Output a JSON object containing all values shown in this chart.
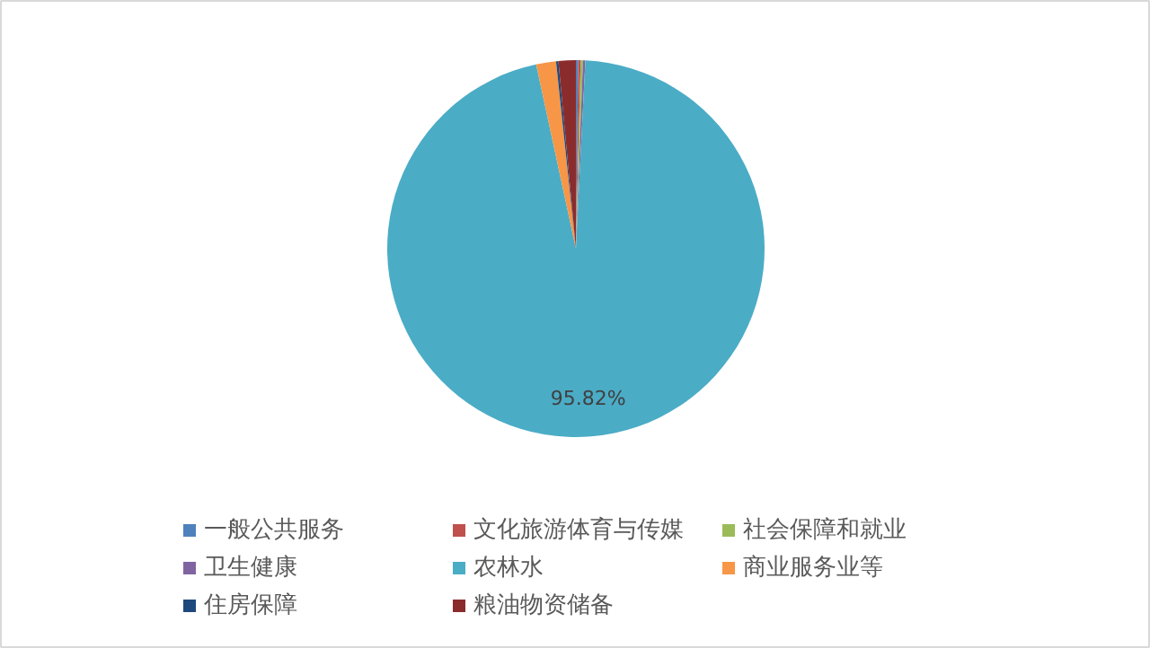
{
  "chart_data": {
    "type": "pie",
    "categories": [
      "一般公共服务",
      "文化旅游体育与传媒",
      "社会保障和就业",
      "卫生健康",
      "农林水",
      "商业服务业等",
      "住房保障",
      "粮油物资储备"
    ],
    "values": [
      0.2,
      0.2,
      0.2,
      0.2,
      95.82,
      1.7,
      0.2,
      1.48
    ],
    "colors": [
      "#4f81bd",
      "#c0504d",
      "#9bbb59",
      "#8064a2",
      "#4bacc6",
      "#f79646",
      "#1f497d",
      "#8b2c2c"
    ],
    "value_labels": [
      null,
      null,
      null,
      null,
      "95.82%",
      null,
      null,
      null
    ],
    "legend": "bottom"
  }
}
